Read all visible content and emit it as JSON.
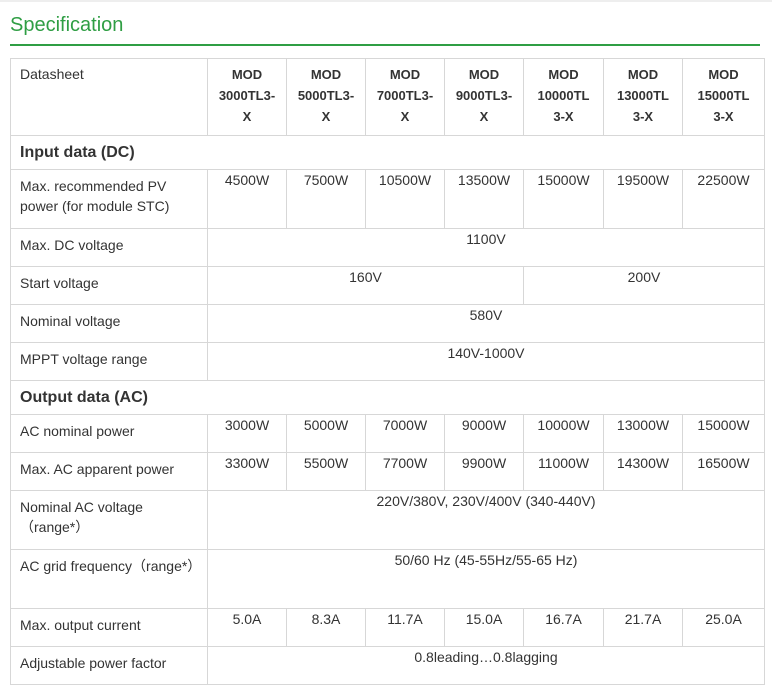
{
  "title": "Specification",
  "header": {
    "label": "Datasheet",
    "models": [
      "MOD\n3000TL3-\nX",
      "MOD\n5000TL3-\nX",
      "MOD\n7000TL3-\nX",
      "MOD\n9000TL3-\nX",
      "MOD\n10000TL\n3-X",
      "MOD\n13000TL\n3-X",
      "MOD\n15000TL\n3-X"
    ]
  },
  "sections": {
    "input": "Input data (DC)",
    "output": "Output data (AC)"
  },
  "rows": {
    "max_pv_power": {
      "label": "Max. recommended PV power (for module STC)",
      "values": [
        "4500W",
        "7500W",
        "10500W",
        "13500W",
        "15000W",
        "19500W",
        "22500W"
      ]
    },
    "max_dc_voltage": {
      "label": "Max. DC voltage",
      "value": "1100V"
    },
    "start_voltage": {
      "label": "Start voltage",
      "value_a": "160V",
      "value_b": "200V"
    },
    "nominal_voltage": {
      "label": "Nominal voltage",
      "value": "580V"
    },
    "mppt_range": {
      "label": "MPPT voltage range",
      "value": "140V-1000V"
    },
    "ac_nominal_power": {
      "label": "AC nominal power",
      "values": [
        "3000W",
        "5000W",
        "7000W",
        "9000W",
        "10000W",
        "13000W",
        "15000W"
      ]
    },
    "ac_apparent_power": {
      "label": "Max. AC apparent power",
      "values": [
        "3300W",
        "5500W",
        "7700W",
        "9900W",
        "11000W",
        "14300W",
        "16500W"
      ]
    },
    "nominal_ac_voltage": {
      "label": "Nominal AC voltage（range*）",
      "value": "220V/380V, 230V/400V (340-440V)"
    },
    "ac_grid_freq": {
      "label": "AC grid frequency（range*）",
      "value": "50/60 Hz (45-55Hz/55-65 Hz)"
    },
    "max_output_current": {
      "label": "Max. output current",
      "values": [
        "5.0A",
        "8.3A",
        "11.7A",
        "15.0A",
        "16.7A",
        "21.7A",
        "25.0A"
      ]
    },
    "power_factor": {
      "label": "Adjustable power factor",
      "value": "0.8leading…0.8lagging"
    }
  }
}
